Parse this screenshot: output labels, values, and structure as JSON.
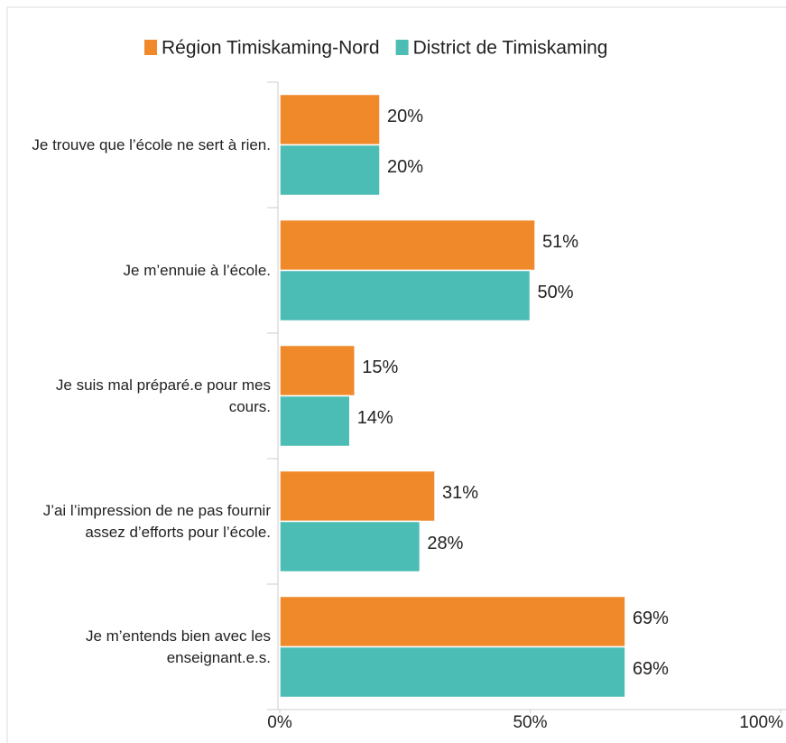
{
  "chart_data": {
    "type": "bar",
    "orientation": "horizontal",
    "categories": [
      "Je trouve que l’école ne sert à rien.",
      "Je m’ennuie à l’école.",
      "Je suis mal préparé.e pour mes cours.",
      "J’ai l’impression de ne pas fournir assez d’efforts pour l’école.",
      "Je m’entends bien avec les enseignant.e.s."
    ],
    "series": [
      {
        "name": "Région Timiskaming-Nord",
        "color": "#f0892a",
        "values": [
          20,
          51,
          15,
          31,
          69
        ],
        "value_labels": [
          "20%",
          "51%",
          "15%",
          "31%",
          "69%"
        ]
      },
      {
        "name": "District de Timiskaming",
        "color": "#4cbdb4",
        "values": [
          20,
          50,
          14,
          28,
          69
        ],
        "value_labels": [
          "20%",
          "50%",
          "14%",
          "28%",
          "69%"
        ]
      }
    ],
    "xlim": [
      0,
      100
    ],
    "xticks": [
      {
        "value": 0,
        "label": "0%"
      },
      {
        "value": 50,
        "label": "50%"
      },
      {
        "value": 100,
        "label": "100%"
      }
    ],
    "legend": "top"
  }
}
